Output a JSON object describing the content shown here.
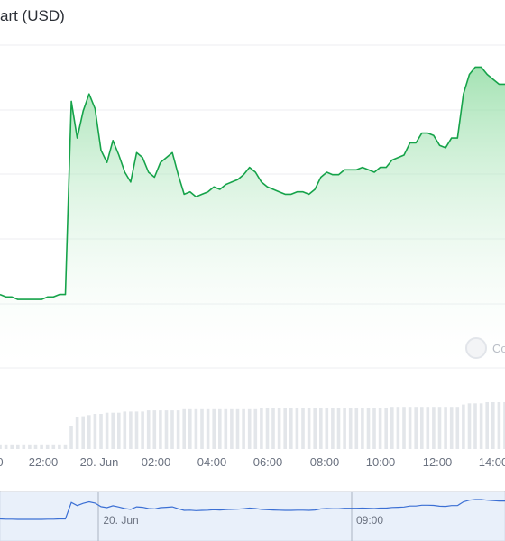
{
  "title": "art (USD)",
  "watermark": "Co",
  "colors": {
    "line": "#16a34a",
    "area_top": "#86d99a",
    "grid": "#eceef1",
    "volume": "#e3e6ea",
    "navigator_line": "#3b6fd4",
    "navigator_mask": "#dbe6f7"
  },
  "chart_data": {
    "type": "area",
    "title": "art (USD)",
    "x_tick_labels": [
      "0",
      "22:00",
      "20. Jun",
      "02:00",
      "04:00",
      "06:00",
      "08:00",
      "10:00",
      "12:00",
      "14:00"
    ],
    "navigator_tick_labels": [
      "20. Jun",
      "09:00"
    ],
    "grid": true,
    "series": [
      {
        "values": [
          20,
          19,
          19,
          18,
          18,
          18,
          18,
          18,
          19,
          19,
          20,
          20,
          99,
          84,
          95,
          102,
          96,
          79,
          74,
          83,
          77,
          70,
          66,
          78,
          76,
          70,
          68,
          74,
          76,
          78,
          69,
          61,
          62,
          60,
          61,
          62,
          64,
          63,
          65,
          66,
          67,
          69,
          72,
          70,
          66,
          64,
          63,
          62,
          61,
          61,
          62,
          62,
          61,
          63,
          68,
          70,
          69,
          69,
          71,
          71,
          71,
          72,
          71,
          70,
          72,
          72,
          75,
          76,
          77,
          82,
          82,
          86,
          86,
          85,
          81,
          80,
          84,
          84,
          102,
          110,
          113,
          113,
          110,
          108,
          106,
          106
        ]
      }
    ],
    "volume": [
      4,
      4,
      4,
      4,
      4,
      4,
      4,
      4,
      4,
      4,
      4,
      4,
      20,
      27,
      28,
      29,
      30,
      30,
      31,
      31,
      31,
      32,
      32,
      32,
      32,
      33,
      33,
      33,
      33,
      33,
      33,
      34,
      34,
      34,
      34,
      34,
      34,
      34,
      34,
      34,
      34,
      34,
      34,
      34,
      35,
      35,
      35,
      35,
      35,
      35,
      35,
      35,
      35,
      35,
      35,
      35,
      35,
      35,
      35,
      35,
      35,
      35,
      35,
      35,
      35,
      35,
      36,
      36,
      36,
      36,
      36,
      36,
      36,
      36,
      36,
      36,
      36,
      36,
      38,
      39,
      39,
      39,
      40,
      40,
      40,
      40
    ]
  }
}
